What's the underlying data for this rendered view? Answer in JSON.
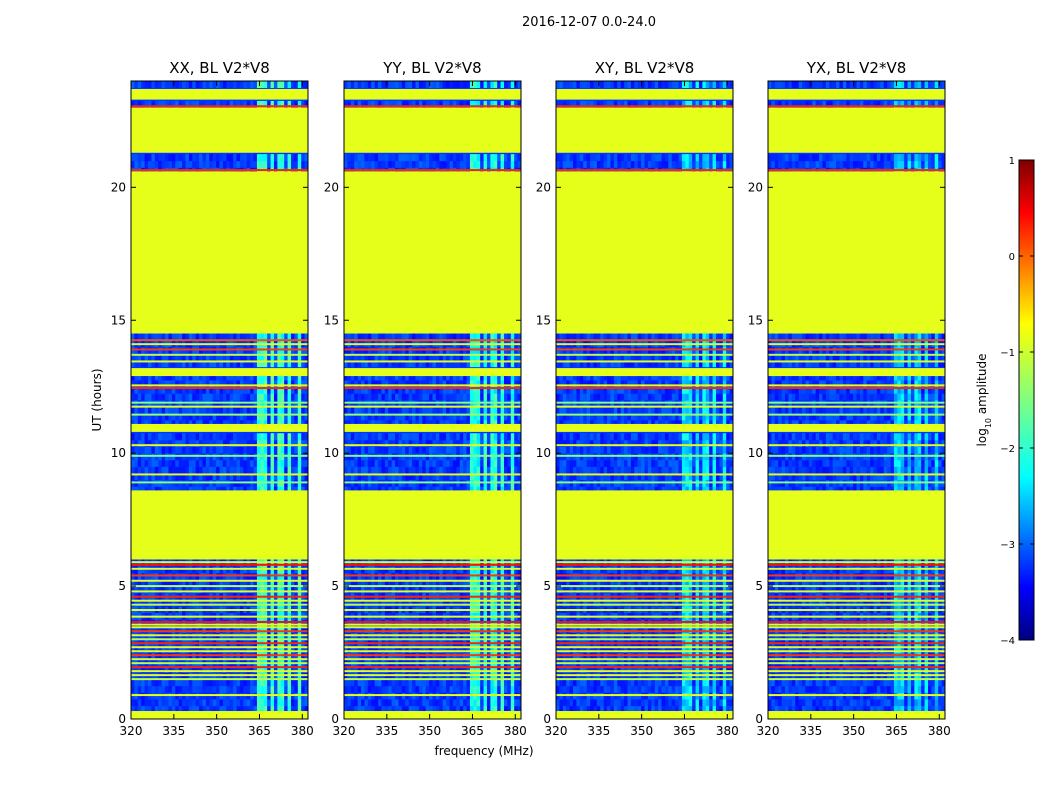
{
  "chart_data": {
    "type": "heatmap",
    "suptitle": "2016-12-07 0.0-24.0",
    "xlabel": "frequency (MHz)",
    "ylabel": "UT (hours)",
    "xlim": [
      320,
      382
    ],
    "ylim": [
      0,
      24
    ],
    "xticks": [
      320,
      335,
      350,
      365,
      380
    ],
    "xtick_labels": [
      "320",
      "335",
      "350",
      "365",
      "380"
    ],
    "yticks": [
      0,
      5,
      10,
      15,
      20
    ],
    "ytick_labels": [
      "0",
      "5",
      "10",
      "15",
      "20"
    ],
    "colormap": "jet",
    "colorbar": {
      "label_prefix": "log",
      "label_sub": "10",
      "label_suffix": " amplitude",
      "range": [
        -4,
        1
      ],
      "ticks": [
        1,
        0,
        -1,
        -2,
        -3,
        -4
      ],
      "tick_labels": [
        "1",
        "0",
        "−1",
        "−2",
        "−3",
        "−4"
      ]
    },
    "panels": [
      {
        "title": "XX, BL V2*V8",
        "rfi_level": -1.9
      },
      {
        "title": "YY, BL V2*V8",
        "rfi_level": -2.0
      },
      {
        "title": "XY, BL V2*V8",
        "rfi_level": -2.3
      },
      {
        "title": "YX, BL V2*V8",
        "rfi_level": -2.4
      }
    ],
    "background_level": -3.1,
    "flagged_value": -1.0,
    "flagged_time_ranges_hours": [
      [
        0.0,
        0.3
      ],
      [
        6.0,
        8.6
      ],
      [
        10.8,
        11.1
      ],
      [
        12.9,
        13.2
      ],
      [
        14.5,
        20.6
      ],
      [
        21.3,
        23.0
      ],
      [
        23.3,
        23.7
      ]
    ],
    "rfi_channel_ranges_mhz": [
      [
        364.0,
        367.5
      ],
      [
        368.5,
        370.0
      ],
      [
        371.0,
        373.5
      ],
      [
        375.0,
        376.5
      ],
      [
        378.0,
        380.0
      ]
    ],
    "line_flags": [
      {
        "t": 23.05,
        "level": 0.2
      },
      {
        "t": 22.95,
        "level": -1.0
      },
      {
        "t": 20.65,
        "level": 0.2
      },
      {
        "t": 20.55,
        "level": -1.0
      },
      {
        "t": 14.25,
        "level": 0.0
      },
      {
        "t": 14.1,
        "level": -1.0
      },
      {
        "t": 13.9,
        "level": 0.1
      },
      {
        "t": 13.7,
        "level": -1.2
      },
      {
        "t": 13.45,
        "level": -1.0
      },
      {
        "t": 12.55,
        "level": -1.0
      },
      {
        "t": 12.45,
        "level": 0.2
      },
      {
        "t": 11.9,
        "level": -1.5
      },
      {
        "t": 11.75,
        "level": -1.0
      },
      {
        "t": 11.45,
        "level": -1.4
      },
      {
        "t": 10.3,
        "level": -1.0
      },
      {
        "t": 9.9,
        "level": -1.5
      },
      {
        "t": 9.2,
        "level": -1.0
      },
      {
        "t": 8.9,
        "level": -1.5
      },
      {
        "t": 5.9,
        "level": -1.0
      },
      {
        "t": 5.8,
        "level": 0.3
      },
      {
        "t": 5.65,
        "level": -1.0
      },
      {
        "t": 5.4,
        "level": 0.1
      },
      {
        "t": 5.2,
        "level": -1.0
      },
      {
        "t": 5.0,
        "level": -1.2
      },
      {
        "t": 4.8,
        "level": -1.0
      },
      {
        "t": 4.6,
        "level": 0.2
      },
      {
        "t": 4.45,
        "level": -1.0
      },
      {
        "t": 4.3,
        "level": -1.2
      },
      {
        "t": 4.1,
        "level": -1.0
      },
      {
        "t": 3.85,
        "level": -1.0
      },
      {
        "t": 3.65,
        "level": 0.3
      },
      {
        "t": 3.55,
        "level": -1.0
      },
      {
        "t": 3.45,
        "level": -1.0
      },
      {
        "t": 3.3,
        "level": 0.1
      },
      {
        "t": 3.15,
        "level": -1.0
      },
      {
        "t": 3.0,
        "level": -1.2
      },
      {
        "t": 2.85,
        "level": 0.2
      },
      {
        "t": 2.7,
        "level": -1.0
      },
      {
        "t": 2.55,
        "level": -1.0
      },
      {
        "t": 2.4,
        "level": 0.1
      },
      {
        "t": 2.25,
        "level": -1.0
      },
      {
        "t": 2.1,
        "level": -1.2
      },
      {
        "t": 1.95,
        "level": 0.2
      },
      {
        "t": 1.8,
        "level": -1.0
      },
      {
        "t": 1.65,
        "level": -1.0
      },
      {
        "t": 1.5,
        "level": -1.2
      },
      {
        "t": 0.9,
        "level": -1.0
      }
    ]
  }
}
